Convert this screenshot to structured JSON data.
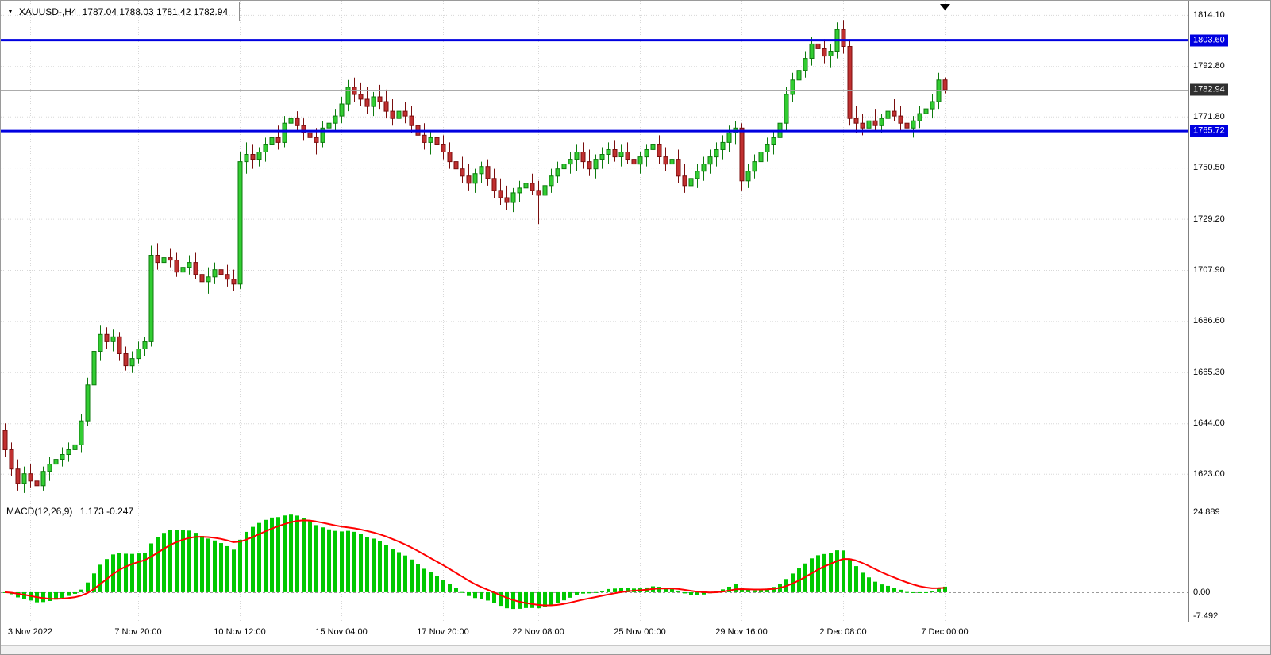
{
  "window": {
    "title_symbol": "XAUUSD-,H4",
    "title_ohlc": "1787.04 1788.03 1781.42 1782.94"
  },
  "chart_data": {
    "type": "candlestick",
    "symbol": "XAUUSD-",
    "timeframe": "H4",
    "current_bar": {
      "open": 1787.04,
      "high": 1788.03,
      "low": 1781.42,
      "close": 1782.94
    },
    "y_axis": {
      "min": 1611.0,
      "max": 1820.0,
      "labels": [
        {
          "text": "1814.10",
          "value": 1814.1
        },
        {
          "text": "1792.80",
          "value": 1792.8
        },
        {
          "text": "1771.80",
          "value": 1771.8
        },
        {
          "text": "1750.50",
          "value": 1750.5
        },
        {
          "text": "1729.20",
          "value": 1729.2
        },
        {
          "text": "1707.90",
          "value": 1707.9
        },
        {
          "text": "1686.60",
          "value": 1686.6
        },
        {
          "text": "1665.30",
          "value": 1665.3
        },
        {
          "text": "1644.00",
          "value": 1644.0
        },
        {
          "text": "1623.00",
          "value": 1623.0
        }
      ]
    },
    "x_labels": [
      {
        "text": "3 Nov 2022",
        "index": 4
      },
      {
        "text": "7 Nov 20:00",
        "index": 21
      },
      {
        "text": "10 Nov 12:00",
        "index": 37
      },
      {
        "text": "15 Nov 04:00",
        "index": 53
      },
      {
        "text": "17 Nov 20:00",
        "index": 69
      },
      {
        "text": "22 Nov 08:00",
        "index": 84
      },
      {
        "text": "25 Nov 00:00",
        "index": 100
      },
      {
        "text": "29 Nov 16:00",
        "index": 116
      },
      {
        "text": "2 Dec 08:00",
        "index": 132
      },
      {
        "text": "7 Dec 00:00",
        "index": 148
      }
    ],
    "hlines": [
      {
        "value": 1803.6,
        "label": "1803.60"
      },
      {
        "value": 1765.72,
        "label": "1765.72"
      }
    ],
    "current_price": {
      "value": 1782.94,
      "label": "1782.94"
    },
    "macd": {
      "label": "MACD(12,26,9)",
      "values_text": "1.173 -0.247",
      "fast": 12,
      "slow": 26,
      "signal": 9,
      "main_value": 1.173,
      "signal_value": -0.247,
      "axis": {
        "min": -9.4,
        "max": 27.9,
        "labels": [
          {
            "text": "24.889",
            "value": 24.889
          },
          {
            "text": "0.00",
            "value": 0
          },
          {
            "text": "-7.492",
            "value": -7.492
          }
        ]
      }
    },
    "colors": {
      "bull_body": "#32CD32",
      "bull_line": "#0E7A0E",
      "bear_body": "#C03030",
      "bear_line": "#7A0E0E",
      "hline": "#0000E0",
      "current_line": "#A0A0A0",
      "current_badge_bg": "#303030",
      "grid": "#D8D8D8",
      "separator": "#808080",
      "macd_hist": "#00C800",
      "macd_signal": "#FF0000"
    },
    "candles": [
      [
        1641,
        1644,
        1630,
        1633
      ],
      [
        1633,
        1636,
        1622,
        1625
      ],
      [
        1625,
        1629,
        1616,
        1619
      ],
      [
        1619,
        1626,
        1615,
        1623
      ],
      [
        1623,
        1627,
        1617,
        1620
      ],
      [
        1620,
        1624,
        1614,
        1618
      ],
      [
        1618,
        1626,
        1616,
        1624
      ],
      [
        1624,
        1630,
        1620,
        1627
      ],
      [
        1627,
        1632,
        1623,
        1629
      ],
      [
        1629,
        1634,
        1626,
        1631
      ],
      [
        1631,
        1636,
        1628,
        1633
      ],
      [
        1633,
        1638,
        1630,
        1635
      ],
      [
        1635,
        1648,
        1632,
        1645
      ],
      [
        1645,
        1663,
        1643,
        1660
      ],
      [
        1660,
        1677,
        1658,
        1674
      ],
      [
        1674,
        1685,
        1670,
        1681
      ],
      [
        1681,
        1684,
        1675,
        1678
      ],
      [
        1678,
        1683,
        1674,
        1680
      ],
      [
        1680,
        1682,
        1670,
        1673
      ],
      [
        1673,
        1676,
        1666,
        1668
      ],
      [
        1668,
        1674,
        1665,
        1671
      ],
      [
        1671,
        1678,
        1669,
        1675
      ],
      [
        1675,
        1680,
        1672,
        1678
      ],
      [
        1678,
        1718,
        1676,
        1714
      ],
      [
        1714,
        1719,
        1708,
        1711
      ],
      [
        1711,
        1716,
        1706,
        1713
      ],
      [
        1713,
        1717,
        1709,
        1712
      ],
      [
        1712,
        1715,
        1705,
        1707
      ],
      [
        1707,
        1712,
        1703,
        1709
      ],
      [
        1709,
        1714,
        1706,
        1711
      ],
      [
        1711,
        1715,
        1704,
        1706
      ],
      [
        1706,
        1710,
        1700,
        1703
      ],
      [
        1703,
        1709,
        1698,
        1705
      ],
      [
        1705,
        1711,
        1702,
        1708
      ],
      [
        1708,
        1712,
        1704,
        1706
      ],
      [
        1706,
        1710,
        1701,
        1704
      ],
      [
        1704,
        1708,
        1699,
        1702
      ],
      [
        1702,
        1757,
        1700,
        1753
      ],
      [
        1753,
        1761,
        1748,
        1756
      ],
      [
        1756,
        1760,
        1750,
        1754
      ],
      [
        1754,
        1759,
        1751,
        1757
      ],
      [
        1757,
        1763,
        1753,
        1760
      ],
      [
        1760,
        1766,
        1756,
        1763
      ],
      [
        1763,
        1768,
        1758,
        1761
      ],
      [
        1761,
        1772,
        1759,
        1769
      ],
      [
        1769,
        1773,
        1764,
        1771
      ],
      [
        1771,
        1774,
        1766,
        1768
      ],
      [
        1768,
        1771,
        1762,
        1765
      ],
      [
        1765,
        1769,
        1760,
        1763
      ],
      [
        1763,
        1767,
        1756,
        1761
      ],
      [
        1761,
        1770,
        1759,
        1767
      ],
      [
        1767,
        1772,
        1763,
        1769
      ],
      [
        1769,
        1775,
        1766,
        1772
      ],
      [
        1772,
        1780,
        1769,
        1777
      ],
      [
        1777,
        1787,
        1774,
        1784
      ],
      [
        1784,
        1788,
        1778,
        1781
      ],
      [
        1781,
        1786,
        1776,
        1779
      ],
      [
        1779,
        1784,
        1773,
        1776
      ],
      [
        1776,
        1782,
        1772,
        1780
      ],
      [
        1780,
        1785,
        1775,
        1778
      ],
      [
        1778,
        1783,
        1771,
        1774
      ],
      [
        1774,
        1779,
        1768,
        1771
      ],
      [
        1771,
        1777,
        1766,
        1774
      ],
      [
        1774,
        1778,
        1769,
        1772
      ],
      [
        1772,
        1776,
        1765,
        1768
      ],
      [
        1768,
        1772,
        1761,
        1764
      ],
      [
        1764,
        1769,
        1758,
        1761
      ],
      [
        1761,
        1766,
        1756,
        1763
      ],
      [
        1763,
        1767,
        1757,
        1760
      ],
      [
        1760,
        1764,
        1754,
        1757
      ],
      [
        1757,
        1761,
        1750,
        1753
      ],
      [
        1753,
        1758,
        1747,
        1750
      ],
      [
        1750,
        1755,
        1744,
        1747
      ],
      [
        1747,
        1752,
        1741,
        1744
      ],
      [
        1744,
        1750,
        1740,
        1748
      ],
      [
        1748,
        1753,
        1744,
        1751
      ],
      [
        1751,
        1754,
        1743,
        1746
      ],
      [
        1746,
        1750,
        1738,
        1741
      ],
      [
        1741,
        1746,
        1735,
        1738
      ],
      [
        1738,
        1743,
        1733,
        1736
      ],
      [
        1736,
        1742,
        1732,
        1740
      ],
      [
        1740,
        1745,
        1736,
        1742
      ],
      [
        1742,
        1747,
        1737,
        1744
      ],
      [
        1744,
        1748,
        1739,
        1741
      ],
      [
        1741,
        1745,
        1727,
        1739
      ],
      [
        1739,
        1746,
        1736,
        1743
      ],
      [
        1743,
        1750,
        1740,
        1747
      ],
      [
        1747,
        1753,
        1744,
        1750
      ],
      [
        1750,
        1755,
        1746,
        1752
      ],
      [
        1752,
        1757,
        1748,
        1754
      ],
      [
        1754,
        1760,
        1749,
        1757
      ],
      [
        1757,
        1761,
        1750,
        1753
      ],
      [
        1753,
        1758,
        1747,
        1750
      ],
      [
        1750,
        1756,
        1746,
        1754
      ],
      [
        1754,
        1759,
        1750,
        1756
      ],
      [
        1756,
        1761,
        1752,
        1758
      ],
      [
        1758,
        1762,
        1753,
        1755
      ],
      [
        1755,
        1760,
        1751,
        1757
      ],
      [
        1757,
        1761,
        1752,
        1754
      ],
      [
        1754,
        1758,
        1749,
        1752
      ],
      [
        1752,
        1757,
        1748,
        1755
      ],
      [
        1755,
        1760,
        1751,
        1758
      ],
      [
        1758,
        1763,
        1754,
        1760
      ],
      [
        1760,
        1764,
        1752,
        1755
      ],
      [
        1755,
        1759,
        1749,
        1752
      ],
      [
        1752,
        1757,
        1748,
        1754
      ],
      [
        1754,
        1758,
        1744,
        1747
      ],
      [
        1747,
        1752,
        1740,
        1743
      ],
      [
        1743,
        1749,
        1739,
        1746
      ],
      [
        1746,
        1752,
        1742,
        1749
      ],
      [
        1749,
        1755,
        1745,
        1752
      ],
      [
        1752,
        1758,
        1748,
        1755
      ],
      [
        1755,
        1761,
        1751,
        1758
      ],
      [
        1758,
        1764,
        1754,
        1761
      ],
      [
        1761,
        1768,
        1757,
        1765
      ],
      [
        1765,
        1770,
        1760,
        1767
      ],
      [
        1767,
        1769,
        1741,
        1745
      ],
      [
        1745,
        1752,
        1742,
        1749
      ],
      [
        1749,
        1756,
        1746,
        1753
      ],
      [
        1753,
        1760,
        1750,
        1757
      ],
      [
        1757,
        1763,
        1753,
        1760
      ],
      [
        1760,
        1766,
        1756,
        1763
      ],
      [
        1763,
        1772,
        1760,
        1769
      ],
      [
        1769,
        1784,
        1766,
        1781
      ],
      [
        1781,
        1790,
        1778,
        1787
      ],
      [
        1787,
        1794,
        1783,
        1791
      ],
      [
        1791,
        1799,
        1788,
        1796
      ],
      [
        1796,
        1805,
        1793,
        1802
      ],
      [
        1802,
        1807,
        1797,
        1800
      ],
      [
        1800,
        1804,
        1794,
        1797
      ],
      [
        1797,
        1802,
        1792,
        1799
      ],
      [
        1799,
        1811,
        1796,
        1808
      ],
      [
        1808,
        1812,
        1798,
        1801
      ],
      [
        1801,
        1804,
        1768,
        1771
      ],
      [
        1771,
        1776,
        1765,
        1769
      ],
      [
        1769,
        1773,
        1764,
        1767
      ],
      [
        1767,
        1772,
        1763,
        1770
      ],
      [
        1770,
        1775,
        1766,
        1768
      ],
      [
        1768,
        1773,
        1765,
        1771
      ],
      [
        1771,
        1777,
        1767,
        1774
      ],
      [
        1774,
        1779,
        1770,
        1772
      ],
      [
        1772,
        1776,
        1766,
        1769
      ],
      [
        1769,
        1774,
        1765,
        1767
      ],
      [
        1767,
        1772,
        1763,
        1770
      ],
      [
        1770,
        1776,
        1767,
        1773
      ],
      [
        1773,
        1778,
        1769,
        1775
      ],
      [
        1775,
        1781,
        1771,
        1778
      ],
      [
        1778,
        1790,
        1775,
        1787
      ],
      [
        1787.04,
        1788.03,
        1781.42,
        1782.94
      ]
    ]
  }
}
